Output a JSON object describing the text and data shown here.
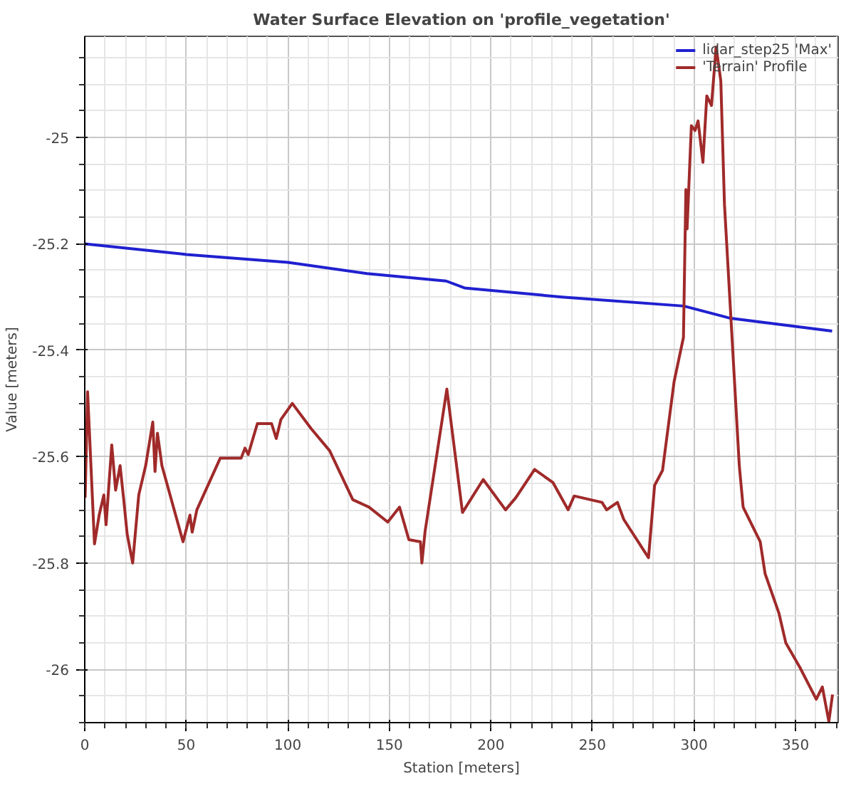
{
  "chart_data": {
    "type": "line",
    "title": "Water Surface Elevation on 'profile_vegetation'",
    "xlabel": "Station [meters]",
    "ylabel": "Value [meters]",
    "xlim": [
      0,
      371
    ],
    "ylim": [
      -26.1,
      -24.81
    ],
    "xticks": [
      0,
      50,
      100,
      150,
      200,
      250,
      300,
      350
    ],
    "yticks": [
      -26,
      -25.8,
      -25.6,
      -25.4,
      -25.2,
      -25
    ],
    "grid": true,
    "legend": "top right",
    "marker": "none",
    "line_style": "solid",
    "series": [
      {
        "name": "lidar_step25 'Max'",
        "color": "#2020d0",
        "x": [
          0,
          50,
          100,
          139,
          178,
          187,
          235,
          295,
          318,
          368
        ],
        "values": [
          -25.2,
          -25.22,
          -25.235,
          -25.256,
          -25.27,
          -25.283,
          -25.3,
          -25.317,
          -25.34,
          -25.364
        ]
      },
      {
        "name": "'Terrain' Profile",
        "color": "#a02a2a",
        "x": [
          0.2,
          1.4,
          4.8,
          7.1,
          9.4,
          10.5,
          13.3,
          15.2,
          17.4,
          19.2,
          20.9,
          23.6,
          26.6,
          30,
          33.5,
          34.6,
          35.8,
          38,
          48.4,
          51.8,
          52.9,
          55.2,
          66.7,
          77,
          78.9,
          80.5,
          85,
          92,
          94.3,
          96.6,
          102.2,
          111.4,
          120.6,
          132,
          140,
          149.2,
          155,
          159.6,
          165.3,
          166,
          167.6,
          178.3,
          186,
          196.2,
          207.2,
          212.3,
          221.5,
          230.6,
          238,
          241,
          254.7,
          257,
          262.3,
          265.4,
          277.6,
          280.6,
          284.5,
          290.2,
          294.8,
          296,
          296.6,
          298.7,
          300.5,
          302,
          304.4,
          306.3,
          308.6,
          310.9,
          313.2,
          315,
          322.3,
          324.2,
          332.6,
          335,
          341.8,
          345.2,
          352.1,
          360.2,
          363.2,
          366.4,
          368.2
        ],
        "values": [
          -25.677,
          -25.478,
          -25.764,
          -25.71,
          -25.672,
          -25.728,
          -25.578,
          -25.663,
          -25.617,
          -25.681,
          -25.746,
          -25.8,
          -25.672,
          -25.617,
          -25.535,
          -25.628,
          -25.556,
          -25.617,
          -25.76,
          -25.71,
          -25.742,
          -25.7,
          -25.603,
          -25.603,
          -25.584,
          -25.596,
          -25.538,
          -25.538,
          -25.566,
          -25.53,
          -25.5,
          -25.547,
          -25.589,
          -25.681,
          -25.695,
          -25.723,
          -25.695,
          -25.756,
          -25.76,
          -25.8,
          -25.74,
          -25.473,
          -25.705,
          -25.643,
          -25.7,
          -25.677,
          -25.624,
          -25.649,
          -25.7,
          -25.674,
          -25.686,
          -25.7,
          -25.686,
          -25.718,
          -25.79,
          -25.654,
          -25.626,
          -25.459,
          -25.376,
          -25.098,
          -25.172,
          -24.978,
          -24.987,
          -24.969,
          -25.047,
          -24.922,
          -24.94,
          -24.83,
          -24.894,
          -25.126,
          -25.617,
          -25.695,
          -25.76,
          -25.82,
          -25.894,
          -25.95,
          -25.996,
          -26.056,
          -26.033,
          -26.098,
          -26.047
        ]
      }
    ]
  }
}
